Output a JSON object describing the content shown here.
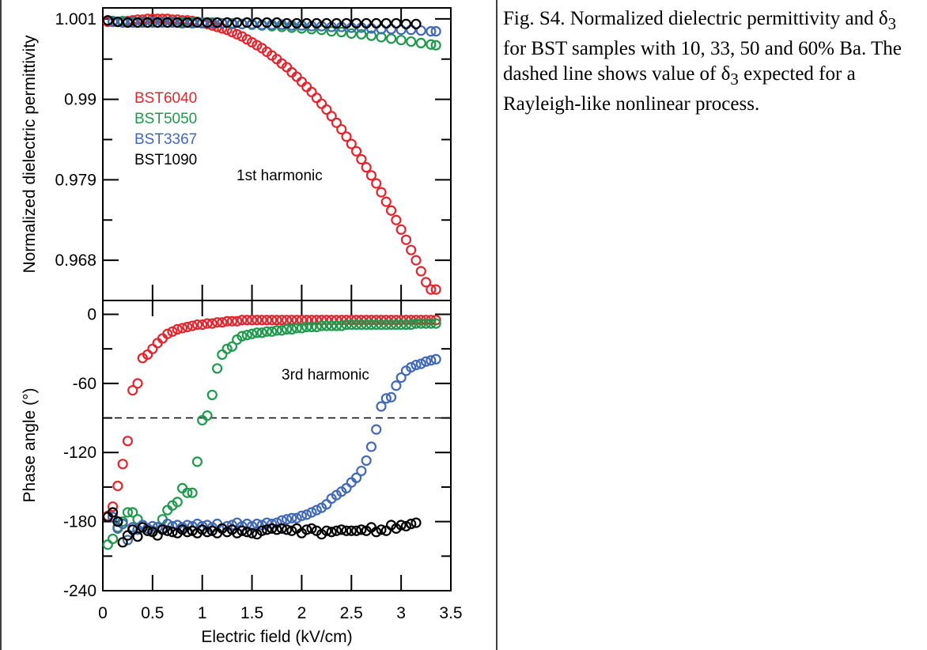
{
  "caption": {
    "parts": [
      "Fig. S4. Normalized dielectric permittivity and δ",
      "3",
      " for BST samples with 10, 33, 50 and 60% Ba. The dashed line shows value of δ",
      "3",
      " expected for a Rayleigh-like nonlinear process."
    ]
  },
  "chart_data": [
    {
      "type": "scatter",
      "panel": "top",
      "ylabel": "Normalized dielectric permittivity",
      "annotation": "1st harmonic",
      "xlim": [
        0,
        3.5
      ],
      "ylim": [
        0.9625,
        1.0025
      ],
      "yticks": [
        0.968,
        0.979,
        0.99,
        1.001
      ],
      "ytick_labels": [
        "0.968",
        "0.979",
        "0.99",
        "1.001"
      ],
      "grid": false,
      "legend_position": "left",
      "series": [
        {
          "name": "BST6040",
          "color": "#e0262f",
          "x": [
            0.05,
            0.1,
            0.15,
            0.2,
            0.25,
            0.3,
            0.35,
            0.4,
            0.45,
            0.5,
            0.55,
            0.6,
            0.65,
            0.7,
            0.75,
            0.8,
            0.85,
            0.9,
            0.95,
            1.0,
            1.05,
            1.1,
            1.15,
            1.2,
            1.25,
            1.3,
            1.35,
            1.4,
            1.45,
            1.5,
            1.55,
            1.6,
            1.65,
            1.7,
            1.75,
            1.8,
            1.85,
            1.9,
            1.95,
            2.0,
            2.05,
            2.1,
            2.15,
            2.2,
            2.25,
            2.3,
            2.35,
            2.4,
            2.45,
            2.5,
            2.55,
            2.6,
            2.65,
            2.7,
            2.75,
            2.8,
            2.85,
            2.9,
            2.95,
            3.0,
            3.05,
            3.1,
            3.15,
            3.2,
            3.25,
            3.3,
            3.35
          ],
          "y": [
            1.0006,
            1.0006,
            1.0006,
            1.0006,
            1.0007,
            1.0008,
            1.0009,
            1.0009,
            1.001,
            1.001,
            1.001,
            1.001,
            1.001,
            1.0009,
            1.0009,
            1.0008,
            1.0008,
            1.0007,
            1.0006,
            1.0004,
            1.0003,
            1.0001,
            0.9999,
            0.9997,
            0.9995,
            0.9992,
            0.9989,
            0.9986,
            0.9982,
            0.9978,
            0.9974,
            0.997,
            0.9965,
            0.996,
            0.9955,
            0.9949,
            0.9944,
            0.9937,
            0.9931,
            0.9924,
            0.9917,
            0.991,
            0.9902,
            0.9894,
            0.9886,
            0.9877,
            0.9868,
            0.9859,
            0.9849,
            0.9839,
            0.9829,
            0.9818,
            0.9807,
            0.9796,
            0.9785,
            0.9773,
            0.976,
            0.9748,
            0.9735,
            0.9722,
            0.9708,
            0.9694,
            0.968,
            0.9665,
            0.965,
            0.964,
            0.964
          ]
        },
        {
          "name": "BST5050",
          "color": "#1f9a4c",
          "x": [
            0.1,
            0.2,
            0.3,
            0.4,
            0.5,
            0.6,
            0.7,
            0.8,
            0.9,
            1.0,
            1.1,
            1.2,
            1.3,
            1.4,
            1.5,
            1.6,
            1.7,
            1.8,
            1.9,
            2.0,
            2.1,
            2.2,
            2.3,
            2.4,
            2.5,
            2.6,
            2.7,
            2.8,
            2.9,
            3.0,
            3.1,
            3.2,
            3.3,
            3.35
          ],
          "y": [
            1.0007,
            1.0007,
            1.0006,
            1.0006,
            1.0006,
            1.0006,
            1.0006,
            1.0006,
            1.0005,
            1.0005,
            1.0005,
            1.0004,
            1.0004,
            1.0003,
            1.0002,
            1.0001,
            1.0,
            0.9999,
            0.9998,
            0.9997,
            0.9996,
            0.9995,
            0.9993,
            0.9992,
            0.999,
            0.9989,
            0.9987,
            0.9985,
            0.9983,
            0.9981,
            0.9979,
            0.9977,
            0.9975,
            0.9974
          ]
        },
        {
          "name": "BST3367",
          "color": "#4169b4",
          "x": [
            0.1,
            0.2,
            0.3,
            0.4,
            0.5,
            0.6,
            0.7,
            0.8,
            0.9,
            1.0,
            1.1,
            1.2,
            1.3,
            1.4,
            1.5,
            1.6,
            1.7,
            1.8,
            1.9,
            2.0,
            2.1,
            2.2,
            2.3,
            2.4,
            2.5,
            2.6,
            2.7,
            2.8,
            2.9,
            3.0,
            3.1,
            3.2,
            3.3,
            3.35
          ],
          "y": [
            1.0006,
            1.0005,
            1.0005,
            1.0005,
            1.0005,
            1.0005,
            1.0005,
            1.0004,
            1.0004,
            1.0004,
            1.0004,
            1.0004,
            1.0003,
            1.0003,
            1.0003,
            1.0002,
            1.0002,
            1.0002,
            1.0001,
            1.0001,
            1.0,
            1.0,
            0.9999,
            0.9999,
            0.9998,
            0.9998,
            0.9997,
            0.9996,
            0.9996,
            0.9995,
            0.9995,
            0.9994,
            0.9993,
            0.9993
          ]
        },
        {
          "name": "BST1090",
          "color": "#000000",
          "x": [
            0.05,
            0.15,
            0.25,
            0.35,
            0.45,
            0.55,
            0.65,
            0.75,
            0.85,
            0.95,
            1.05,
            1.15,
            1.25,
            1.35,
            1.45,
            1.55,
            1.65,
            1.75,
            1.85,
            1.95,
            2.05,
            2.15,
            2.25,
            2.35,
            2.45,
            2.55,
            2.65,
            2.75,
            2.85,
            2.95,
            3.05,
            3.15
          ],
          "y": [
            1.0008,
            1.0006,
            1.0005,
            1.0005,
            1.0005,
            1.0005,
            1.0005,
            1.0005,
            1.0005,
            1.0005,
            1.0005,
            1.0005,
            1.0005,
            1.0005,
            1.0005,
            1.0005,
            1.0005,
            1.0005,
            1.0004,
            1.0004,
            1.0004,
            1.0004,
            1.0004,
            1.0004,
            1.0004,
            1.0004,
            1.0004,
            1.0004,
            1.0004,
            1.0004,
            1.0003,
            1.0003
          ]
        }
      ]
    },
    {
      "type": "scatter",
      "panel": "bottom",
      "xlabel": "Electric field (kV/cm)",
      "ylabel": "Phase angle (°)",
      "annotation": "3rd harmonic",
      "xlim": [
        0,
        3.5
      ],
      "xticks": [
        0,
        0.5,
        1,
        1.5,
        2,
        2.5,
        3,
        3.5
      ],
      "xtick_labels": [
        "0",
        "0.5",
        "1",
        "1.5",
        "2",
        "2.5",
        "3",
        "3.5"
      ],
      "ylim": [
        -240,
        12
      ],
      "yticks": [
        -240,
        -180,
        -120,
        -60,
        0
      ],
      "ytick_labels": [
        "-240",
        "-180",
        "-120",
        "-60",
        "0"
      ],
      "reference_line": {
        "y": -90,
        "style": "dashed"
      },
      "grid": false,
      "series": [
        {
          "name": "BST6040",
          "color": "#e0262f",
          "x": [
            0.05,
            0.1,
            0.15,
            0.2,
            0.25,
            0.3,
            0.35,
            0.4,
            0.45,
            0.5,
            0.55,
            0.6,
            0.65,
            0.7,
            0.75,
            0.8,
            0.85,
            0.9,
            0.95,
            1.0,
            1.05,
            1.1,
            1.15,
            1.2,
            1.25,
            1.3,
            1.35,
            1.4,
            1.45,
            1.5,
            1.55,
            1.6,
            1.65,
            1.7,
            1.75,
            1.8,
            1.85,
            1.9,
            1.95,
            2.0,
            2.05,
            2.1,
            2.15,
            2.2,
            2.25,
            2.3,
            2.35,
            2.4,
            2.45,
            2.5,
            2.55,
            2.6,
            2.65,
            2.7,
            2.75,
            2.8,
            2.85,
            2.9,
            2.95,
            3.0,
            3.05,
            3.1,
            3.15,
            3.2,
            3.25,
            3.3,
            3.35
          ],
          "y": [
            -175,
            -167,
            -149,
            -130,
            -110,
            -66,
            -60,
            -38,
            -35,
            -30,
            -25,
            -21,
            -17,
            -15,
            -13,
            -12,
            -11,
            -10,
            -9,
            -9,
            -8,
            -8,
            -7,
            -7,
            -6,
            -6,
            -6,
            -5,
            -5,
            -5,
            -5,
            -5,
            -5,
            -5,
            -5,
            -5,
            -5,
            -5,
            -5,
            -5,
            -5,
            -5,
            -5,
            -5,
            -5,
            -5,
            -5,
            -5,
            -5,
            -5,
            -5,
            -5,
            -5,
            -5,
            -5,
            -5,
            -5,
            -5,
            -5,
            -5,
            -5,
            -5,
            -5,
            -5,
            -5,
            -5,
            -5
          ]
        },
        {
          "name": "BST5050",
          "color": "#1f9a4c",
          "x": [
            0.05,
            0.1,
            0.15,
            0.2,
            0.25,
            0.3,
            0.35,
            0.4,
            0.45,
            0.5,
            0.55,
            0.6,
            0.65,
            0.7,
            0.75,
            0.8,
            0.85,
            0.9,
            0.95,
            1.0,
            1.05,
            1.1,
            1.15,
            1.2,
            1.25,
            1.3,
            1.35,
            1.4,
            1.45,
            1.5,
            1.55,
            1.6,
            1.65,
            1.7,
            1.75,
            1.8,
            1.85,
            1.9,
            1.95,
            2.0,
            2.05,
            2.1,
            2.15,
            2.2,
            2.25,
            2.3,
            2.35,
            2.4,
            2.45,
            2.5,
            2.55,
            2.6,
            2.65,
            2.7,
            2.75,
            2.8,
            2.85,
            2.9,
            2.95,
            3.0,
            3.05,
            3.1,
            3.15,
            3.2,
            3.25,
            3.3,
            3.35
          ],
          "y": [
            -200,
            -195,
            -185,
            -180,
            -172,
            -172,
            -178,
            -183,
            -186,
            -188,
            -185,
            -178,
            -170,
            -166,
            -163,
            -151,
            -155,
            -155,
            -128,
            -92,
            -88,
            -70,
            -47,
            -35,
            -30,
            -28,
            -22,
            -19,
            -18,
            -17,
            -16,
            -16,
            -15,
            -15,
            -14,
            -14,
            -13,
            -13,
            -12,
            -12,
            -11,
            -11,
            -11,
            -10,
            -10,
            -10,
            -10,
            -10,
            -9,
            -9,
            -9,
            -9,
            -9,
            -9,
            -9,
            -9,
            -9,
            -9,
            -9,
            -9,
            -9,
            -9,
            -8,
            -8,
            -8,
            -8,
            -8
          ]
        },
        {
          "name": "BST3367",
          "color": "#4169b4",
          "x": [
            0.1,
            0.15,
            0.2,
            0.25,
            0.3,
            0.35,
            0.4,
            0.45,
            0.5,
            0.55,
            0.6,
            0.65,
            0.7,
            0.75,
            0.8,
            0.85,
            0.9,
            0.95,
            1.0,
            1.05,
            1.1,
            1.15,
            1.2,
            1.25,
            1.3,
            1.35,
            1.4,
            1.45,
            1.5,
            1.55,
            1.6,
            1.65,
            1.7,
            1.75,
            1.8,
            1.85,
            1.9,
            1.95,
            2.0,
            2.05,
            2.1,
            2.15,
            2.2,
            2.25,
            2.3,
            2.35,
            2.4,
            2.45,
            2.5,
            2.55,
            2.6,
            2.65,
            2.7,
            2.75,
            2.8,
            2.85,
            2.9,
            2.95,
            3.0,
            3.05,
            3.1,
            3.15,
            3.2,
            3.25,
            3.3,
            3.35
          ],
          "y": [
            -176,
            -186,
            -182,
            -196,
            -185,
            -187,
            -183,
            -186,
            -184,
            -185,
            -186,
            -182,
            -184,
            -183,
            -185,
            -183,
            -184,
            -182,
            -184,
            -183,
            -185,
            -182,
            -186,
            -184,
            -183,
            -181,
            -184,
            -182,
            -184,
            -182,
            -183,
            -181,
            -182,
            -181,
            -179,
            -178,
            -177,
            -177,
            -175,
            -174,
            -172,
            -170,
            -168,
            -165,
            -160,
            -157,
            -154,
            -151,
            -146,
            -142,
            -136,
            -127,
            -115,
            -100,
            -80,
            -73,
            -72,
            -62,
            -55,
            -49,
            -46,
            -44,
            -43,
            -41,
            -40,
            -39
          ]
        },
        {
          "name": "BST1090",
          "color": "#000000",
          "x": [
            0.05,
            0.1,
            0.15,
            0.2,
            0.25,
            0.3,
            0.35,
            0.4,
            0.45,
            0.5,
            0.55,
            0.6,
            0.65,
            0.7,
            0.75,
            0.8,
            0.85,
            0.9,
            0.95,
            1.0,
            1.05,
            1.1,
            1.15,
            1.2,
            1.25,
            1.3,
            1.35,
            1.4,
            1.45,
            1.5,
            1.55,
            1.6,
            1.65,
            1.7,
            1.75,
            1.8,
            1.85,
            1.9,
            1.95,
            2.0,
            2.05,
            2.1,
            2.15,
            2.2,
            2.25,
            2.3,
            2.35,
            2.4,
            2.45,
            2.5,
            2.55,
            2.6,
            2.65,
            2.7,
            2.75,
            2.8,
            2.85,
            2.9,
            2.95,
            3.0,
            3.05,
            3.1,
            3.15
          ],
          "y": [
            -176,
            -172,
            -180,
            -198,
            -192,
            -187,
            -193,
            -185,
            -188,
            -189,
            -192,
            -187,
            -188,
            -189,
            -190,
            -187,
            -189,
            -188,
            -190,
            -187,
            -189,
            -188,
            -190,
            -186,
            -189,
            -187,
            -190,
            -188,
            -189,
            -190,
            -191,
            -188,
            -187,
            -186,
            -187,
            -186,
            -187,
            -188,
            -186,
            -190,
            -187,
            -186,
            -188,
            -191,
            -188,
            -189,
            -188,
            -187,
            -188,
            -188,
            -188,
            -187,
            -188,
            -185,
            -189,
            -187,
            -188,
            -183,
            -186,
            -183,
            -184,
            -182,
            -181
          ]
        }
      ]
    }
  ]
}
